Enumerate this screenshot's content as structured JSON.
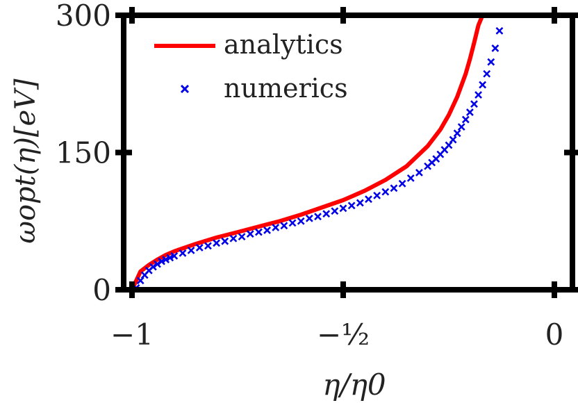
{
  "chart_data": {
    "type": "line",
    "title": "",
    "xlabel": "η/η0",
    "ylabel": "ωopt(η)[eV]",
    "xlim": [
      -1.02,
      0.02
    ],
    "ylim": [
      0,
      300
    ],
    "x_ticks": [
      {
        "value": -1,
        "label": "−1"
      },
      {
        "value": -0.5,
        "label": "−½"
      },
      {
        "value": 0,
        "label": "0"
      }
    ],
    "y_ticks": [
      {
        "value": 0,
        "label": "0"
      },
      {
        "value": 150,
        "label": "150"
      },
      {
        "value": 300,
        "label": "300"
      }
    ],
    "grid": false,
    "legend_position": "top-left",
    "series": [
      {
        "name": "analytics",
        "style": "line",
        "color": "#ff0000",
        "x": [
          -1.0,
          -0.98,
          -0.96,
          -0.94,
          -0.92,
          -0.9,
          -0.85,
          -0.8,
          -0.75,
          -0.7,
          -0.65,
          -0.6,
          -0.55,
          -0.5,
          -0.45,
          -0.4,
          -0.35,
          -0.3,
          -0.27,
          -0.25,
          -0.23,
          -0.21,
          -0.2,
          -0.19,
          -0.18,
          -0.17
        ],
        "y": [
          0,
          20,
          27,
          33,
          38,
          42,
          50,
          57,
          63,
          69,
          75,
          82,
          90,
          98,
          108,
          120,
          135,
          157,
          175,
          191,
          211,
          236,
          252,
          270,
          289,
          300
        ]
      },
      {
        "name": "numerics",
        "style": "markers",
        "marker": "x",
        "color": "#0000e6",
        "x": [
          -0.99,
          -0.98,
          -0.97,
          -0.96,
          -0.95,
          -0.94,
          -0.93,
          -0.92,
          -0.91,
          -0.9,
          -0.88,
          -0.86,
          -0.84,
          -0.82,
          -0.8,
          -0.78,
          -0.76,
          -0.74,
          -0.72,
          -0.7,
          -0.68,
          -0.66,
          -0.64,
          -0.62,
          -0.6,
          -0.58,
          -0.56,
          -0.54,
          -0.52,
          -0.5,
          -0.48,
          -0.46,
          -0.44,
          -0.42,
          -0.4,
          -0.38,
          -0.36,
          -0.34,
          -0.32,
          -0.3,
          -0.29,
          -0.28,
          -0.27,
          -0.26,
          -0.25,
          -0.24,
          -0.23,
          -0.22,
          -0.21,
          -0.2,
          -0.19,
          -0.18,
          -0.17,
          -0.16,
          -0.15,
          -0.14,
          -0.13
        ],
        "y": [
          2,
          10,
          16,
          21,
          25,
          28,
          31,
          33,
          35,
          37,
          40,
          43,
          46,
          48,
          51,
          53,
          56,
          58,
          61,
          63,
          65,
          68,
          70,
          73,
          75,
          78,
          80,
          83,
          86,
          89,
          92,
          95,
          99,
          103,
          107,
          111,
          116,
          122,
          128,
          135,
          139,
          143,
          148,
          153,
          158,
          164,
          171,
          178,
          186,
          194,
          203,
          213,
          224,
          236,
          249,
          264,
          283
        ]
      }
    ]
  }
}
